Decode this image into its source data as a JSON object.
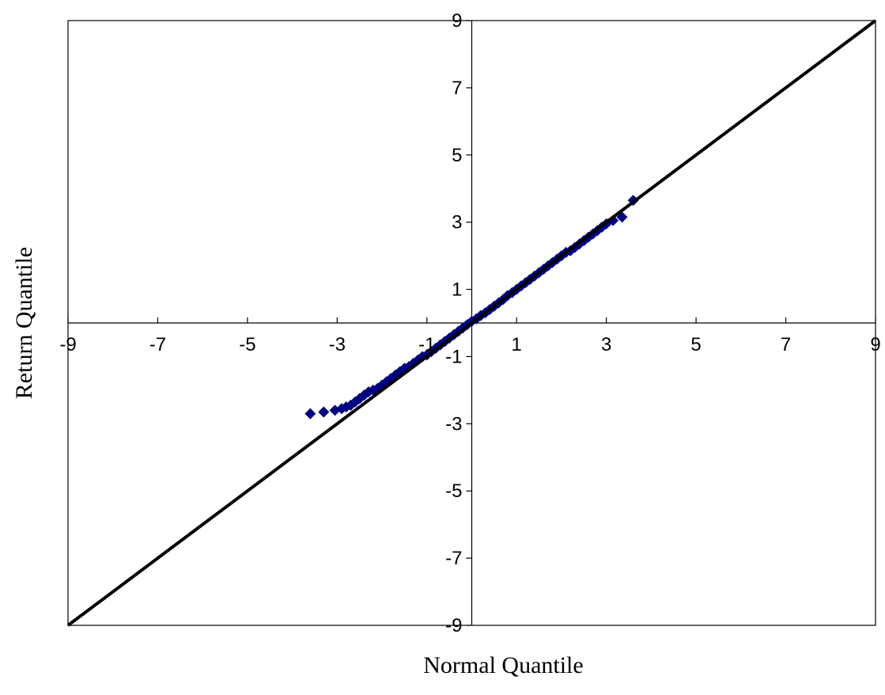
{
  "chart_data": {
    "type": "scatter",
    "title": "",
    "xlabel": "Normal Quantile",
    "ylabel": "Return Quantile",
    "xlim": [
      -9,
      9
    ],
    "ylim": [
      -9,
      9
    ],
    "x_ticks": [
      -9,
      -7,
      -5,
      -3,
      -1,
      1,
      3,
      5,
      7,
      9
    ],
    "y_ticks": [
      -9,
      -7,
      -5,
      -3,
      -1,
      1,
      3,
      5,
      7,
      9
    ],
    "x_tick_labels": [
      "-9",
      "-7",
      "-5",
      "-3",
      "-1",
      "1",
      "3",
      "5",
      "7",
      "9"
    ],
    "y_tick_labels": [
      "-9",
      "-7",
      "-5",
      "-3",
      "-1",
      "1",
      "3",
      "5",
      "7",
      "9"
    ],
    "grid": false,
    "legend": "none",
    "marker": "diamond",
    "series": [
      {
        "x": [
          -3.6,
          -3.3,
          -3.05,
          -2.9,
          -2.8,
          -2.7,
          -2.6,
          -2.5,
          -2.4,
          -2.3,
          -2.2,
          -2.1,
          -2.0,
          -1.9,
          -1.8,
          -1.7,
          -1.6,
          -1.5,
          -1.4,
          -1.3,
          -1.2,
          -1.1,
          -1.0,
          -0.9,
          -0.8,
          -0.7,
          -0.6,
          -0.5,
          -0.4,
          -0.3,
          -0.2,
          -0.1,
          0.0,
          0.1,
          0.2,
          0.3,
          0.4,
          0.5,
          0.6,
          0.7,
          0.8,
          0.9,
          1.0,
          1.1,
          1.2,
          1.3,
          1.4,
          1.5,
          1.6,
          1.7,
          1.8,
          1.9,
          2.0,
          2.1,
          2.2,
          2.3,
          2.4,
          2.5,
          2.6,
          2.7,
          2.8,
          2.9,
          3.0,
          3.15,
          3.35,
          3.6
        ],
        "y": [
          -2.7,
          -2.65,
          -2.6,
          -2.55,
          -2.5,
          -2.45,
          -2.35,
          -2.25,
          -2.15,
          -2.05,
          -2.0,
          -1.95,
          -1.85,
          -1.75,
          -1.65,
          -1.55,
          -1.45,
          -1.35,
          -1.3,
          -1.2,
          -1.1,
          -1.0,
          -0.95,
          -0.85,
          -0.75,
          -0.65,
          -0.55,
          -0.45,
          -0.35,
          -0.25,
          -0.15,
          -0.05,
          0.05,
          0.12,
          0.22,
          0.3,
          0.4,
          0.5,
          0.6,
          0.7,
          0.82,
          0.9,
          1.0,
          1.1,
          1.2,
          1.3,
          1.4,
          1.5,
          1.6,
          1.7,
          1.8,
          1.9,
          2.0,
          2.1,
          2.15,
          2.25,
          2.35,
          2.45,
          2.55,
          2.65,
          2.75,
          2.85,
          2.95,
          3.05,
          3.15,
          3.65
        ]
      }
    ],
    "reference_line": {
      "x": [
        -9,
        9
      ],
      "y": [
        -9,
        9
      ]
    },
    "colors": {
      "marker": "#000080",
      "line": "#000000",
      "axis": "#000000",
      "background": "#ffffff"
    }
  }
}
